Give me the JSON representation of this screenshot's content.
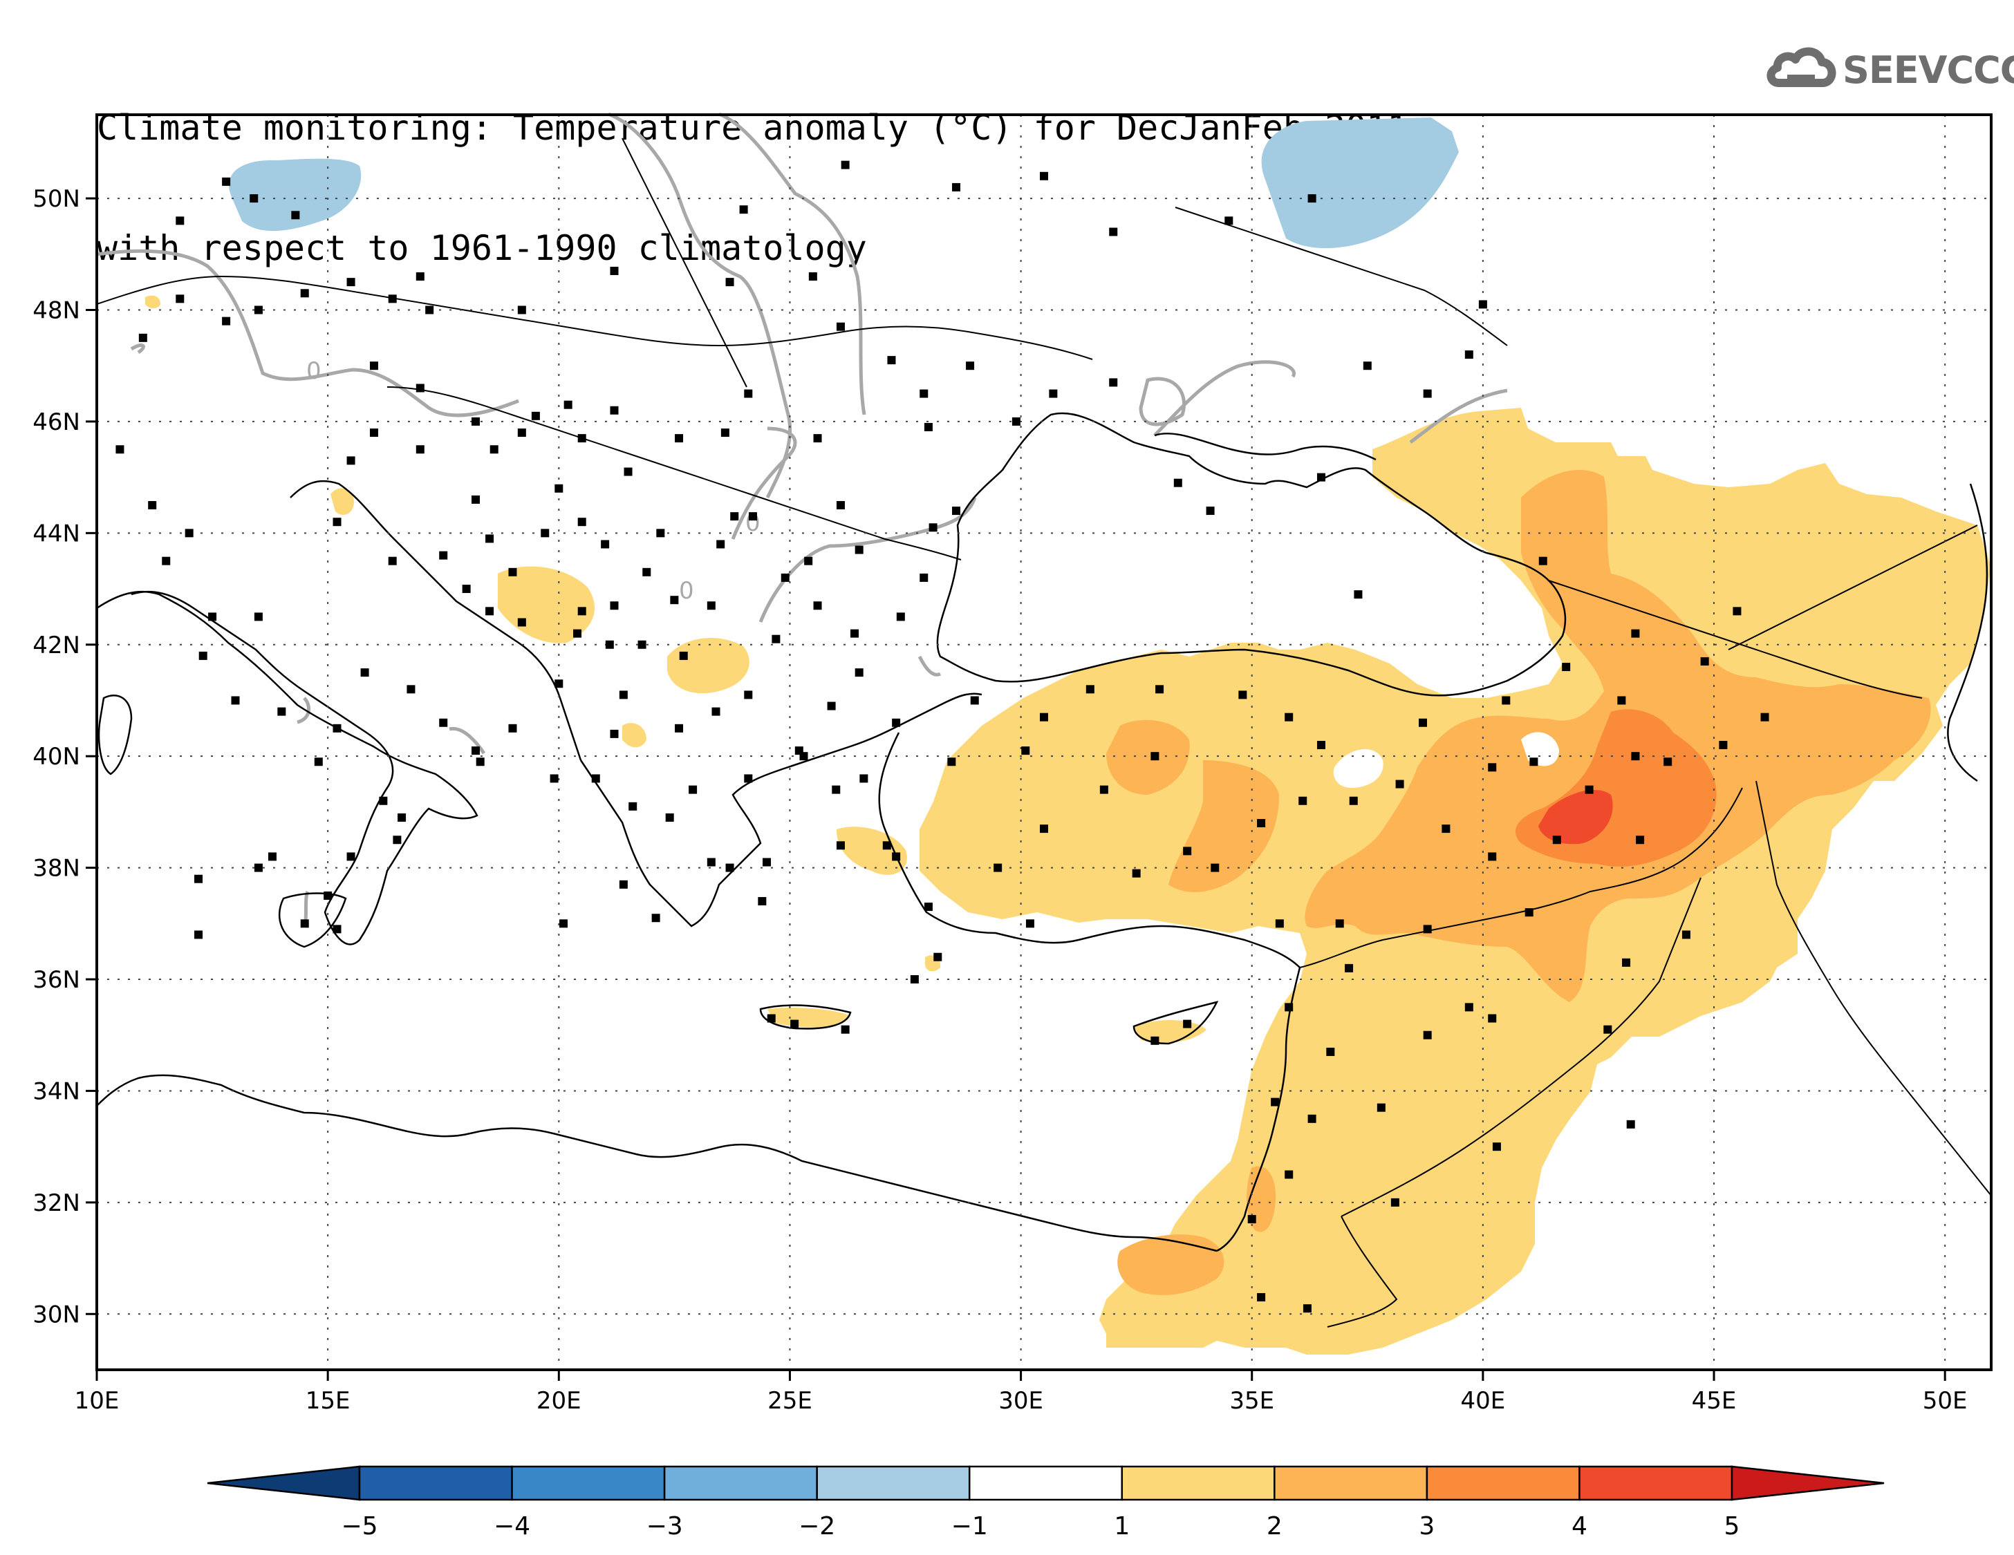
{
  "title": {
    "line1": "Climate monitoring: Temperature anomaly (°C) for DecJanFeb 2011",
    "line2": "with respect to 1961-1990 climatology"
  },
  "logo": {
    "text": "SEEVCCC",
    "icon": "cloud-icon"
  },
  "map": {
    "lon_range": [
      10,
      51
    ],
    "lat_range": [
      29,
      51.5
    ],
    "lon_ticks": [
      {
        "v": 10,
        "label": "10E"
      },
      {
        "v": 15,
        "label": "15E"
      },
      {
        "v": 20,
        "label": "20E"
      },
      {
        "v": 25,
        "label": "25E"
      },
      {
        "v": 30,
        "label": "30E"
      },
      {
        "v": 35,
        "label": "35E"
      },
      {
        "v": 40,
        "label": "40E"
      },
      {
        "v": 45,
        "label": "45E"
      },
      {
        "v": 50,
        "label": "50E"
      }
    ],
    "lat_ticks": [
      {
        "v": 30,
        "label": "30N"
      },
      {
        "v": 32,
        "label": "32N"
      },
      {
        "v": 34,
        "label": "34N"
      },
      {
        "v": 36,
        "label": "36N"
      },
      {
        "v": 38,
        "label": "38N"
      },
      {
        "v": 40,
        "label": "40N"
      },
      {
        "v": 42,
        "label": "42N"
      },
      {
        "v": 44,
        "label": "44N"
      },
      {
        "v": 46,
        "label": "46N"
      },
      {
        "v": 48,
        "label": "48N"
      },
      {
        "v": 50,
        "label": "50N"
      }
    ],
    "contour_label": "0"
  },
  "colorbar": {
    "labels": [
      "-5",
      "-4",
      "-3",
      "-2",
      "-1",
      "1",
      "2",
      "3",
      "4",
      "5"
    ],
    "colors": [
      "#0d3b73",
      "#1f5fa8",
      "#3a87c8",
      "#70afdc",
      "#a6cde3",
      "#ffffff",
      "#fdd878",
      "#fdb455",
      "#f98b3a",
      "#ee4a2b",
      "#cc1a1a"
    ]
  },
  "stations": [
    [
      10.5,
      45.5
    ],
    [
      11.2,
      44.5
    ],
    [
      11.5,
      43.5
    ],
    [
      12.0,
      44.0
    ],
    [
      12.5,
      42.5
    ],
    [
      12.3,
      41.8
    ],
    [
      13.5,
      42.5
    ],
    [
      13.0,
      41.0
    ],
    [
      14.0,
      40.8
    ],
    [
      15.2,
      40.5
    ],
    [
      15.8,
      41.5
    ],
    [
      16.8,
      41.2
    ],
    [
      17.5,
      40.6
    ],
    [
      18.2,
      40.1
    ],
    [
      16.2,
      39.2
    ],
    [
      16.5,
      38.5
    ],
    [
      15.5,
      38.2
    ],
    [
      13.8,
      38.2
    ],
    [
      15.0,
      37.5
    ],
    [
      12.2,
      37.8
    ],
    [
      14.5,
      37.0
    ],
    [
      15.2,
      36.9
    ],
    [
      13.5,
      38.0
    ],
    [
      11.0,
      47.5
    ],
    [
      11.8,
      48.2
    ],
    [
      12.8,
      47.8
    ],
    [
      13.5,
      48.0
    ],
    [
      14.5,
      48.3
    ],
    [
      15.5,
      48.5
    ],
    [
      16.4,
      48.2
    ],
    [
      17.2,
      48.0
    ],
    [
      16.0,
      47.0
    ],
    [
      17.0,
      46.6
    ],
    [
      18.2,
      46.0
    ],
    [
      19.5,
      46.1
    ],
    [
      20.2,
      46.3
    ],
    [
      21.2,
      46.2
    ],
    [
      20.5,
      45.7
    ],
    [
      21.5,
      45.1
    ],
    [
      22.6,
      45.7
    ],
    [
      20.0,
      44.8
    ],
    [
      19.7,
      44.0
    ],
    [
      20.5,
      44.2
    ],
    [
      21.0,
      43.8
    ],
    [
      22.2,
      44.0
    ],
    [
      21.9,
      43.3
    ],
    [
      22.5,
      42.8
    ],
    [
      21.2,
      42.7
    ],
    [
      20.5,
      42.6
    ],
    [
      19.2,
      42.4
    ],
    [
      18.5,
      42.6
    ],
    [
      18.0,
      43.0
    ],
    [
      17.5,
      43.6
    ],
    [
      16.4,
      43.5
    ],
    [
      15.2,
      44.2
    ],
    [
      15.5,
      45.3
    ],
    [
      16.0,
      45.8
    ],
    [
      17.0,
      45.5
    ],
    [
      18.6,
      45.5
    ],
    [
      19.2,
      45.8
    ],
    [
      18.2,
      44.6
    ],
    [
      18.5,
      43.9
    ],
    [
      19.0,
      43.3
    ],
    [
      20.4,
      42.2
    ],
    [
      21.4,
      41.1
    ],
    [
      21.8,
      42.0
    ],
    [
      22.7,
      41.8
    ],
    [
      23.3,
      42.7
    ],
    [
      24.7,
      42.1
    ],
    [
      25.6,
      42.7
    ],
    [
      26.4,
      42.2
    ],
    [
      27.4,
      42.5
    ],
    [
      27.9,
      43.2
    ],
    [
      24.9,
      43.2
    ],
    [
      23.5,
      43.8
    ],
    [
      25.4,
      43.5
    ],
    [
      26.5,
      43.7
    ],
    [
      28.1,
      44.1
    ],
    [
      28.6,
      44.4
    ],
    [
      26.1,
      44.5
    ],
    [
      24.2,
      44.3
    ],
    [
      23.8,
      44.3
    ],
    [
      23.6,
      45.8
    ],
    [
      24.1,
      46.5
    ],
    [
      25.6,
      45.7
    ],
    [
      26.1,
      47.7
    ],
    [
      27.2,
      47.1
    ],
    [
      28.9,
      47.0
    ],
    [
      27.9,
      46.5
    ],
    [
      28.0,
      45.9
    ],
    [
      29.9,
      46.0
    ],
    [
      30.7,
      46.5
    ],
    [
      32.0,
      46.7
    ],
    [
      33.4,
      44.9
    ],
    [
      34.1,
      44.4
    ],
    [
      36.5,
      45.0
    ],
    [
      37.5,
      47.0
    ],
    [
      38.8,
      46.5
    ],
    [
      39.7,
      47.2
    ],
    [
      40.0,
      48.1
    ],
    [
      36.3,
      50.0
    ],
    [
      34.5,
      49.6
    ],
    [
      32.0,
      49.4
    ],
    [
      30.5,
      50.4
    ],
    [
      28.6,
      50.2
    ],
    [
      26.2,
      50.6
    ],
    [
      24.0,
      49.8
    ],
    [
      25.5,
      48.6
    ],
    [
      23.7,
      48.5
    ],
    [
      21.2,
      48.7
    ],
    [
      19.2,
      48.0
    ],
    [
      17.0,
      48.6
    ],
    [
      14.3,
      49.7
    ],
    [
      13.4,
      50.0
    ],
    [
      11.8,
      49.6
    ],
    [
      12.8,
      50.3
    ],
    [
      26.5,
      41.5
    ],
    [
      27.3,
      40.6
    ],
    [
      29.0,
      41.0
    ],
    [
      32.9,
      40.0
    ],
    [
      30.5,
      40.7
    ],
    [
      31.5,
      41.2
    ],
    [
      33.0,
      41.2
    ],
    [
      34.8,
      41.1
    ],
    [
      35.8,
      40.7
    ],
    [
      36.5,
      40.2
    ],
    [
      38.7,
      40.6
    ],
    [
      40.5,
      41.0
    ],
    [
      41.8,
      41.6
    ],
    [
      43.0,
      41.0
    ],
    [
      43.3,
      40.0
    ],
    [
      42.3,
      39.4
    ],
    [
      41.1,
      39.9
    ],
    [
      40.2,
      39.8
    ],
    [
      38.2,
      39.5
    ],
    [
      37.2,
      39.2
    ],
    [
      36.9,
      37.0
    ],
    [
      35.6,
      37.0
    ],
    [
      34.2,
      38.0
    ],
    [
      32.5,
      37.9
    ],
    [
      30.5,
      38.7
    ],
    [
      29.5,
      38.0
    ],
    [
      30.2,
      37.0
    ],
    [
      28.0,
      37.3
    ],
    [
      27.1,
      38.4
    ],
    [
      26.6,
      39.6
    ],
    [
      28.5,
      39.9
    ],
    [
      30.1,
      40.1
    ],
    [
      31.8,
      39.4
    ],
    [
      33.6,
      38.3
    ],
    [
      35.2,
      38.8
    ],
    [
      36.1,
      39.2
    ],
    [
      39.2,
      38.7
    ],
    [
      40.2,
      38.2
    ],
    [
      41.6,
      38.5
    ],
    [
      43.4,
      38.5
    ],
    [
      44.0,
      39.9
    ],
    [
      45.2,
      40.2
    ],
    [
      46.1,
      40.7
    ],
    [
      44.8,
      41.7
    ],
    [
      43.3,
      42.2
    ],
    [
      45.5,
      42.6
    ],
    [
      41.3,
      43.5
    ],
    [
      37.3,
      42.9
    ],
    [
      41.0,
      37.2
    ],
    [
      38.8,
      36.9
    ],
    [
      37.1,
      36.2
    ],
    [
      35.8,
      35.5
    ],
    [
      36.7,
      34.7
    ],
    [
      36.3,
      33.5
    ],
    [
      35.5,
      33.8
    ],
    [
      35.8,
      32.5
    ],
    [
      35.0,
      31.7
    ],
    [
      35.2,
      30.3
    ],
    [
      36.2,
      30.1
    ],
    [
      37.8,
      33.7
    ],
    [
      40.2,
      35.3
    ],
    [
      38.8,
      35.0
    ],
    [
      39.7,
      35.5
    ],
    [
      40.3,
      33.0
    ],
    [
      43.2,
      33.4
    ],
    [
      42.7,
      35.1
    ],
    [
      43.1,
      36.3
    ],
    [
      44.4,
      36.8
    ],
    [
      38.1,
      32.0
    ],
    [
      33.6,
      35.2
    ],
    [
      32.9,
      34.9
    ],
    [
      24.6,
      35.3
    ],
    [
      25.1,
      35.2
    ],
    [
      26.2,
      35.1
    ],
    [
      28.2,
      36.4
    ],
    [
      27.3,
      38.2
    ],
    [
      26.1,
      38.4
    ],
    [
      22.9,
      39.4
    ],
    [
      22.4,
      38.9
    ],
    [
      21.6,
      39.1
    ],
    [
      20.8,
      39.6
    ],
    [
      21.2,
      40.4
    ],
    [
      22.6,
      40.5
    ],
    [
      23.4,
      40.8
    ],
    [
      24.1,
      41.1
    ],
    [
      25.9,
      40.9
    ],
    [
      25.2,
      40.1
    ],
    [
      24.5,
      38.1
    ],
    [
      24.4,
      37.4
    ],
    [
      22.1,
      37.1
    ],
    [
      21.4,
      37.7
    ],
    [
      23.3,
      38.1
    ],
    [
      23.7,
      38.0
    ],
    [
      20.1,
      37.0
    ],
    [
      19.9,
      39.6
    ],
    [
      19.0,
      40.5
    ],
    [
      20.0,
      41.3
    ],
    [
      21.1,
      42.0
    ],
    [
      26.0,
      39.4
    ],
    [
      25.3,
      40.0
    ],
    [
      24.1,
      39.6
    ],
    [
      27.7,
      36.0
    ],
    [
      12.2,
      36.8
    ],
    [
      14.8,
      39.9
    ],
    [
      16.6,
      38.9
    ],
    [
      18.3,
      39.9
    ]
  ]
}
